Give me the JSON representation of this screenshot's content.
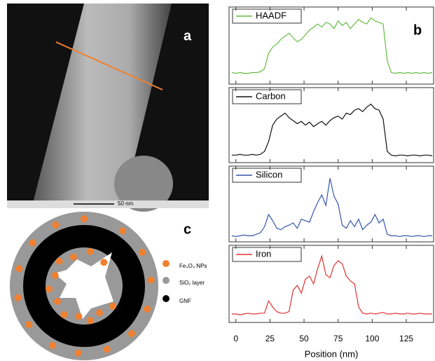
{
  "panel_a": {
    "label": "a",
    "scale_bar": "50 nm"
  },
  "panel_b": {
    "label": "b"
  },
  "panel_c": {
    "label": "c",
    "legend": [
      "Fe₃O₄ NPs",
      "SiO₂ layer",
      "GNF"
    ]
  },
  "chart_data": [
    {
      "type": "line",
      "xlim": [
        -5,
        145
      ],
      "ylim": [
        0,
        100
      ],
      "x": [
        -3,
        0,
        3,
        6,
        9,
        12,
        15,
        18,
        21,
        24,
        27,
        30,
        33,
        36,
        39,
        42,
        45,
        48,
        51,
        54,
        57,
        60,
        63,
        66,
        69,
        72,
        75,
        78,
        81,
        84,
        87,
        90,
        93,
        96,
        99,
        102,
        105,
        108,
        111,
        114,
        117,
        120,
        123,
        126,
        129,
        132,
        135,
        138,
        141,
        144
      ],
      "series": [
        {
          "name": "HAADF",
          "color": "#66bb44",
          "values": [
            15,
            14,
            15,
            14,
            14,
            15,
            15,
            16,
            20,
            40,
            48,
            52,
            58,
            62,
            66,
            60,
            55,
            58,
            64,
            70,
            74,
            78,
            74,
            80,
            78,
            72,
            82,
            76,
            80,
            72,
            78,
            84,
            80,
            78,
            86,
            82,
            80,
            78,
            30,
            15,
            14,
            15,
            14,
            15,
            14,
            15,
            14,
            15,
            14,
            15
          ]
        }
      ]
    },
    {
      "type": "line",
      "xlim": [
        -5,
        145
      ],
      "ylim": [
        0,
        100
      ],
      "x": [
        -3,
        0,
        3,
        6,
        9,
        12,
        15,
        18,
        21,
        24,
        27,
        30,
        33,
        36,
        39,
        42,
        45,
        48,
        51,
        54,
        57,
        60,
        63,
        66,
        69,
        72,
        75,
        78,
        81,
        84,
        87,
        90,
        93,
        96,
        99,
        102,
        105,
        108,
        111,
        114,
        117,
        120,
        123,
        126,
        129,
        132,
        135,
        138,
        141,
        144
      ],
      "series": [
        {
          "name": "Carbon",
          "color": "#111111",
          "values": [
            10,
            10,
            11,
            10,
            10,
            11,
            10,
            11,
            15,
            28,
            50,
            58,
            62,
            66,
            60,
            56,
            52,
            55,
            50,
            54,
            48,
            52,
            55,
            50,
            56,
            60,
            62,
            58,
            66,
            64,
            70,
            72,
            68,
            74,
            78,
            72,
            70,
            58,
            15,
            10,
            9,
            10,
            10,
            9,
            10,
            10,
            9,
            10,
            10,
            9
          ]
        }
      ]
    },
    {
      "type": "line",
      "xlim": [
        -5,
        145
      ],
      "ylim": [
        0,
        100
      ],
      "x": [
        -3,
        0,
        3,
        6,
        9,
        12,
        15,
        18,
        21,
        24,
        27,
        30,
        33,
        36,
        39,
        42,
        45,
        48,
        51,
        54,
        57,
        60,
        63,
        66,
        69,
        72,
        75,
        78,
        81,
        84,
        87,
        90,
        93,
        96,
        99,
        102,
        105,
        108,
        111,
        114,
        117,
        120,
        123,
        126,
        129,
        132,
        135,
        138,
        141,
        144
      ],
      "series": [
        {
          "name": "Silicon",
          "color": "#3355aa",
          "values": [
            8,
            7,
            8,
            9,
            8,
            8,
            10,
            12,
            20,
            36,
            28,
            18,
            16,
            20,
            22,
            25,
            18,
            30,
            28,
            26,
            40,
            52,
            62,
            48,
            84,
            60,
            50,
            22,
            18,
            28,
            20,
            30,
            16,
            22,
            26,
            36,
            25,
            30,
            10,
            8,
            8,
            7,
            8,
            8,
            7,
            8,
            8,
            7,
            8,
            8
          ]
        }
      ]
    },
    {
      "type": "line",
      "xlim": [
        -5,
        145
      ],
      "ylim": [
        0,
        100
      ],
      "x": [
        -3,
        0,
        3,
        6,
        9,
        12,
        15,
        18,
        21,
        24,
        27,
        30,
        33,
        36,
        39,
        42,
        45,
        48,
        51,
        54,
        57,
        60,
        63,
        66,
        69,
        72,
        75,
        78,
        81,
        84,
        87,
        90,
        93,
        96,
        99,
        102,
        105,
        108,
        111,
        114,
        117,
        120,
        123,
        126,
        129,
        132,
        135,
        138,
        141,
        144
      ],
      "xticks": [
        0,
        25,
        50,
        75,
        100,
        125
      ],
      "xlabel": "Position (nm)",
      "series": [
        {
          "name": "Iron",
          "color": "#dd3333",
          "values": [
            11,
            11,
            10,
            11,
            12,
            11,
            11,
            12,
            12,
            28,
            20,
            14,
            12,
            12,
            14,
            42,
            48,
            38,
            56,
            60,
            50,
            70,
            86,
            62,
            58,
            74,
            80,
            76,
            60,
            54,
            50,
            20,
            12,
            11,
            12,
            11,
            12,
            13,
            11,
            11,
            12,
            11,
            11,
            12,
            11,
            11,
            12,
            11,
            11,
            11
          ]
        }
      ]
    }
  ]
}
